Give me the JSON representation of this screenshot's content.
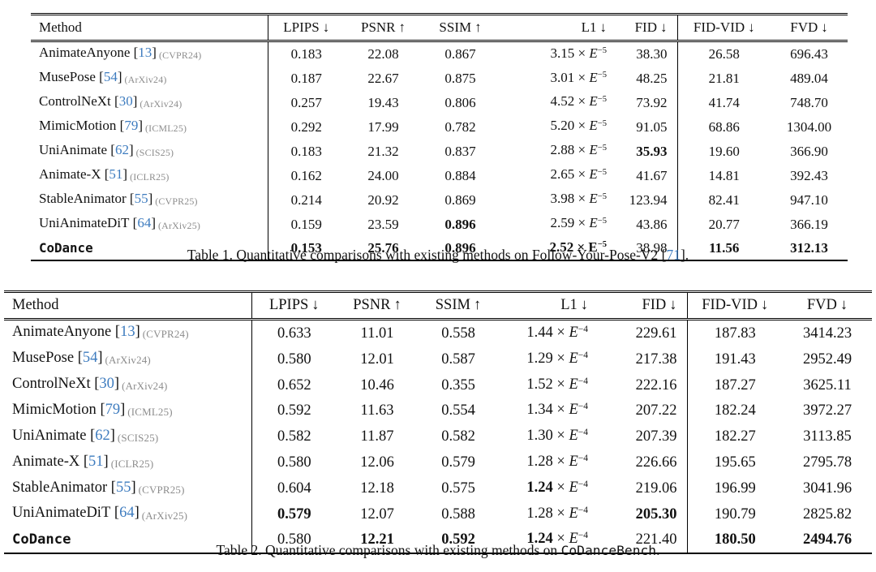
{
  "colors": {
    "citation_blue": "#3e7cbf",
    "venue_gray": "#8c8c8c",
    "text": "#121212",
    "rule": "#000000",
    "background": "#ffffff"
  },
  "tables": [
    {
      "caption_parts": [
        {
          "text": "Table 1. Quantitative comparisons with existing methods on Follow-Your-Pose-V2 "
        },
        {
          "cite": "71"
        },
        {
          "text": "."
        }
      ],
      "columns": [
        {
          "label": "Method",
          "arrow": "",
          "align": "al"
        },
        {
          "label": "LPIPS",
          "arrow": "↓",
          "align": "ac"
        },
        {
          "label": "PSNR",
          "arrow": "↑",
          "align": "ac"
        },
        {
          "label": "SSIM",
          "arrow": "↑",
          "align": "ac"
        },
        {
          "label": "L1",
          "arrow": "↓",
          "align": "ar"
        },
        {
          "label": "FID",
          "arrow": "↓",
          "align": "ar"
        },
        {
          "label": "FID-VID",
          "arrow": "↓",
          "align": "ac"
        },
        {
          "label": "FVD",
          "arrow": "↓",
          "align": "ac"
        }
      ],
      "rows": [
        {
          "method": "AnimateAnyone",
          "cite": "13",
          "venue": "(CVPR24)",
          "mono": false,
          "lpips": {
            "v": "0.183",
            "b": false
          },
          "psnr": {
            "v": "22.08",
            "b": false
          },
          "ssim": {
            "v": "0.867",
            "b": false
          },
          "l1": {
            "m": "3.15",
            "times": "×",
            "e": "E",
            "exp": "−5",
            "bold_m": false,
            "bold_all": false
          },
          "fid": {
            "v": "38.30",
            "b": false
          },
          "fidvid": {
            "v": "26.58",
            "b": false
          },
          "fvd": {
            "v": "696.43",
            "b": false
          }
        },
        {
          "method": "MusePose",
          "cite": "54",
          "venue": "(ArXiv24)",
          "mono": false,
          "lpips": {
            "v": "0.187",
            "b": false
          },
          "psnr": {
            "v": "22.67",
            "b": false
          },
          "ssim": {
            "v": "0.875",
            "b": false
          },
          "l1": {
            "m": "3.01",
            "times": "×",
            "e": "E",
            "exp": "−5",
            "bold_m": false,
            "bold_all": false
          },
          "fid": {
            "v": "48.25",
            "b": false
          },
          "fidvid": {
            "v": "21.81",
            "b": false
          },
          "fvd": {
            "v": "489.04",
            "b": false
          }
        },
        {
          "method": "ControlNeXt",
          "cite": "30",
          "venue": "(ArXiv24)",
          "mono": false,
          "lpips": {
            "v": "0.257",
            "b": false
          },
          "psnr": {
            "v": "19.43",
            "b": false
          },
          "ssim": {
            "v": "0.806",
            "b": false
          },
          "l1": {
            "m": "4.52",
            "times": "×",
            "e": "E",
            "exp": "−5",
            "bold_m": false,
            "bold_all": false
          },
          "fid": {
            "v": "73.92",
            "b": false
          },
          "fidvid": {
            "v": "41.74",
            "b": false
          },
          "fvd": {
            "v": "748.70",
            "b": false
          }
        },
        {
          "method": "MimicMotion",
          "cite": "79",
          "venue": "(ICML25)",
          "mono": false,
          "lpips": {
            "v": "0.292",
            "b": false
          },
          "psnr": {
            "v": "17.99",
            "b": false
          },
          "ssim": {
            "v": "0.782",
            "b": false
          },
          "l1": {
            "m": "5.20",
            "times": "×",
            "e": "E",
            "exp": "−5",
            "bold_m": false,
            "bold_all": false
          },
          "fid": {
            "v": "91.05",
            "b": false
          },
          "fidvid": {
            "v": "68.86",
            "b": false
          },
          "fvd": {
            "v": "1304.00",
            "b": false
          }
        },
        {
          "method": "UniAnimate",
          "cite": "62",
          "venue": "(SCIS25)",
          "mono": false,
          "lpips": {
            "v": "0.183",
            "b": false
          },
          "psnr": {
            "v": "21.32",
            "b": false
          },
          "ssim": {
            "v": "0.837",
            "b": false
          },
          "l1": {
            "m": "2.88",
            "times": "×",
            "e": "E",
            "exp": "−5",
            "bold_m": false,
            "bold_all": false
          },
          "fid": {
            "v": "35.93",
            "b": true
          },
          "fidvid": {
            "v": "19.60",
            "b": false
          },
          "fvd": {
            "v": "366.90",
            "b": false
          }
        },
        {
          "method": "Animate-X",
          "cite": "51",
          "venue": "(ICLR25)",
          "mono": false,
          "lpips": {
            "v": "0.162",
            "b": false
          },
          "psnr": {
            "v": "24.00",
            "b": false
          },
          "ssim": {
            "v": "0.884",
            "b": false
          },
          "l1": {
            "m": "2.65",
            "times": "×",
            "e": "E",
            "exp": "−5",
            "bold_m": false,
            "bold_all": false
          },
          "fid": {
            "v": "41.67",
            "b": false
          },
          "fidvid": {
            "v": "14.81",
            "b": false
          },
          "fvd": {
            "v": "392.43",
            "b": false
          }
        },
        {
          "method": "StableAnimator",
          "cite": "55",
          "venue": "(CVPR25)",
          "mono": false,
          "lpips": {
            "v": "0.214",
            "b": false
          },
          "psnr": {
            "v": "20.92",
            "b": false
          },
          "ssim": {
            "v": "0.869",
            "b": false
          },
          "l1": {
            "m": "3.98",
            "times": "×",
            "e": "E",
            "exp": "−5",
            "bold_m": false,
            "bold_all": false
          },
          "fid": {
            "v": "123.94",
            "b": false
          },
          "fidvid": {
            "v": "82.41",
            "b": false
          },
          "fvd": {
            "v": "947.10",
            "b": false
          }
        },
        {
          "method": "UniAnimateDiT",
          "cite": "64",
          "venue": "(ArXiv25)",
          "mono": false,
          "lpips": {
            "v": "0.159",
            "b": false
          },
          "psnr": {
            "v": "23.59",
            "b": false
          },
          "ssim": {
            "v": "0.896",
            "b": true
          },
          "l1": {
            "m": "2.59",
            "times": "×",
            "e": "E",
            "exp": "−5",
            "bold_m": false,
            "bold_all": false
          },
          "fid": {
            "v": "43.86",
            "b": false
          },
          "fidvid": {
            "v": "20.77",
            "b": false
          },
          "fvd": {
            "v": "366.19",
            "b": false
          }
        },
        {
          "method": "CoDance",
          "cite": "",
          "venue": "",
          "mono": true,
          "lpips": {
            "v": "0.153",
            "b": true
          },
          "psnr": {
            "v": "25.76",
            "b": true
          },
          "ssim": {
            "v": "0.896",
            "b": true
          },
          "l1": {
            "m": "2.52",
            "times": "×",
            "e": "E",
            "exp": "−5",
            "bold_m": true,
            "bold_all": true
          },
          "fid": {
            "v": "38.98",
            "b": false
          },
          "fidvid": {
            "v": "11.56",
            "b": true
          },
          "fvd": {
            "v": "312.13",
            "b": true
          }
        }
      ]
    },
    {
      "caption_parts": [
        {
          "text": "Table 2. Quantitative comparisons with existing methods on "
        },
        {
          "mono": "CoDanceBench"
        },
        {
          "text": "."
        }
      ],
      "columns": [
        {
          "label": "Method",
          "arrow": "",
          "align": "al"
        },
        {
          "label": "LPIPS",
          "arrow": "↓",
          "align": "ac"
        },
        {
          "label": "PSNR",
          "arrow": "↑",
          "align": "ac"
        },
        {
          "label": "SSIM",
          "arrow": "↑",
          "align": "ac"
        },
        {
          "label": "L1",
          "arrow": "↓",
          "align": "ar"
        },
        {
          "label": "FID",
          "arrow": "↓",
          "align": "ar"
        },
        {
          "label": "FID-VID",
          "arrow": "↓",
          "align": "ac"
        },
        {
          "label": "FVD",
          "arrow": "↓",
          "align": "ac"
        }
      ],
      "rows": [
        {
          "method": "AnimateAnyone",
          "cite": "13",
          "venue": "(CVPR24)",
          "mono": false,
          "lpips": {
            "v": "0.633",
            "b": false
          },
          "psnr": {
            "v": "11.01",
            "b": false
          },
          "ssim": {
            "v": "0.558",
            "b": false
          },
          "l1": {
            "m": "1.44",
            "times": "×",
            "e": "E",
            "exp": "−4",
            "bold_m": false,
            "bold_all": false
          },
          "fid": {
            "v": "229.61",
            "b": false
          },
          "fidvid": {
            "v": "187.83",
            "b": false
          },
          "fvd": {
            "v": "3414.23",
            "b": false
          }
        },
        {
          "method": "MusePose",
          "cite": "54",
          "venue": "(ArXiv24)",
          "mono": false,
          "lpips": {
            "v": "0.580",
            "b": false
          },
          "psnr": {
            "v": "12.01",
            "b": false
          },
          "ssim": {
            "v": "0.587",
            "b": false
          },
          "l1": {
            "m": "1.29",
            "times": "×",
            "e": "E",
            "exp": "−4",
            "bold_m": false,
            "bold_all": false
          },
          "fid": {
            "v": "217.38",
            "b": false
          },
          "fidvid": {
            "v": "191.43",
            "b": false
          },
          "fvd": {
            "v": "2952.49",
            "b": false
          }
        },
        {
          "method": "ControlNeXt",
          "cite": "30",
          "venue": "(ArXiv24)",
          "mono": false,
          "lpips": {
            "v": "0.652",
            "b": false
          },
          "psnr": {
            "v": "10.46",
            "b": false
          },
          "ssim": {
            "v": "0.355",
            "b": false
          },
          "l1": {
            "m": "1.52",
            "times": "×",
            "e": "E",
            "exp": "−4",
            "bold_m": false,
            "bold_all": false
          },
          "fid": {
            "v": "222.16",
            "b": false
          },
          "fidvid": {
            "v": "187.27",
            "b": false
          },
          "fvd": {
            "v": "3625.11",
            "b": false
          }
        },
        {
          "method": "MimicMotion",
          "cite": "79",
          "venue": "(ICML25)",
          "mono": false,
          "lpips": {
            "v": "0.592",
            "b": false
          },
          "psnr": {
            "v": "11.63",
            "b": false
          },
          "ssim": {
            "v": "0.554",
            "b": false
          },
          "l1": {
            "m": "1.34",
            "times": "×",
            "e": "E",
            "exp": "−4",
            "bold_m": false,
            "bold_all": false
          },
          "fid": {
            "v": "207.22",
            "b": false
          },
          "fidvid": {
            "v": "182.24",
            "b": false
          },
          "fvd": {
            "v": "3972.27",
            "b": false
          }
        },
        {
          "method": "UniAnimate",
          "cite": "62",
          "venue": "(SCIS25)",
          "mono": false,
          "lpips": {
            "v": "0.582",
            "b": false
          },
          "psnr": {
            "v": "11.87",
            "b": false
          },
          "ssim": {
            "v": "0.582",
            "b": false
          },
          "l1": {
            "m": "1.30",
            "times": "×",
            "e": "E",
            "exp": "−4",
            "bold_m": false,
            "bold_all": false
          },
          "fid": {
            "v": "207.39",
            "b": false
          },
          "fidvid": {
            "v": "182.27",
            "b": false
          },
          "fvd": {
            "v": "3113.85",
            "b": false
          }
        },
        {
          "method": "Animate-X",
          "cite": "51",
          "venue": "(ICLR25)",
          "mono": false,
          "lpips": {
            "v": "0.580",
            "b": false
          },
          "psnr": {
            "v": "12.06",
            "b": false
          },
          "ssim": {
            "v": "0.579",
            "b": false
          },
          "l1": {
            "m": "1.28",
            "times": "×",
            "e": "E",
            "exp": "−4",
            "bold_m": false,
            "bold_all": false
          },
          "fid": {
            "v": "226.66",
            "b": false
          },
          "fidvid": {
            "v": "195.65",
            "b": false
          },
          "fvd": {
            "v": "2795.78",
            "b": false
          }
        },
        {
          "method": "StableAnimator",
          "cite": "55",
          "venue": "(CVPR25)",
          "mono": false,
          "lpips": {
            "v": "0.604",
            "b": false
          },
          "psnr": {
            "v": "12.18",
            "b": false
          },
          "ssim": {
            "v": "0.575",
            "b": false
          },
          "l1": {
            "m": "1.24",
            "times": "×",
            "e": "E",
            "exp": "−4",
            "bold_m": true,
            "bold_all": false
          },
          "fid": {
            "v": "219.06",
            "b": false
          },
          "fidvid": {
            "v": "196.99",
            "b": false
          },
          "fvd": {
            "v": "3041.96",
            "b": false
          }
        },
        {
          "method": "UniAnimateDiT",
          "cite": "64",
          "venue": "(ArXiv25)",
          "mono": false,
          "lpips": {
            "v": "0.579",
            "b": true
          },
          "psnr": {
            "v": "12.07",
            "b": false
          },
          "ssim": {
            "v": "0.588",
            "b": false
          },
          "l1": {
            "m": "1.28",
            "times": "×",
            "e": "E",
            "exp": "−4",
            "bold_m": false,
            "bold_all": false
          },
          "fid": {
            "v": "205.30",
            "b": true
          },
          "fidvid": {
            "v": "190.79",
            "b": false
          },
          "fvd": {
            "v": "2825.82",
            "b": false
          }
        },
        {
          "method": "CoDance",
          "cite": "",
          "venue": "",
          "mono": true,
          "lpips": {
            "v": "0.580",
            "b": false
          },
          "psnr": {
            "v": "12.21",
            "b": true
          },
          "ssim": {
            "v": "0.592",
            "b": true
          },
          "l1": {
            "m": "1.24",
            "times": "×",
            "e": "E",
            "exp": "−4",
            "bold_m": true,
            "bold_all": false
          },
          "fid": {
            "v": "221.40",
            "b": false
          },
          "fidvid": {
            "v": "180.50",
            "b": true
          },
          "fvd": {
            "v": "2494.76",
            "b": true
          }
        }
      ]
    }
  ]
}
